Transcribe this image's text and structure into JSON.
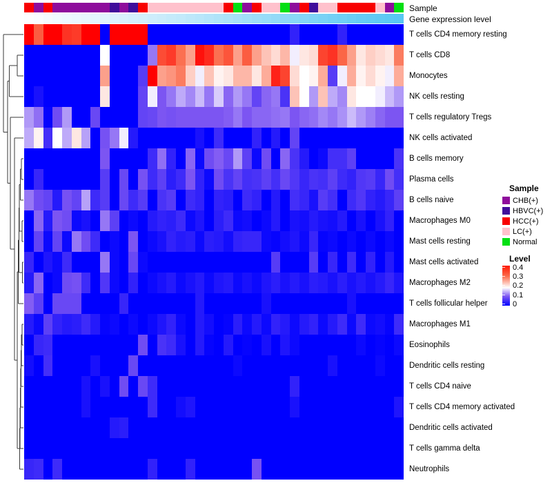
{
  "annotations": {
    "sample_label": "Sample",
    "expression_label": "Gene expression level",
    "sample_groups": [
      "HCC",
      "CHB",
      "HCC",
      "CHB",
      "CHB",
      "CHB",
      "CHB",
      "CHB",
      "CHB",
      "HBVC",
      "CHB",
      "HBVC",
      "HCC",
      "LC",
      "LC",
      "LC",
      "LC",
      "LC",
      "LC",
      "LC",
      "LC",
      "HCC",
      "Normal",
      "CHB",
      "HCC",
      "LC",
      "LC",
      "Normal",
      "CHB",
      "HCC",
      "HBVC",
      "LC",
      "LC",
      "HCC",
      "HCC",
      "HCC",
      "HCC",
      "LC",
      "CHB",
      "Normal"
    ],
    "expression_values": [
      0,
      0.02,
      0.05,
      0.07,
      0.09,
      0.11,
      0.13,
      0.15,
      0.17,
      0.2,
      0.22,
      0.24,
      0.26,
      0.29,
      0.31,
      0.34,
      0.36,
      0.39,
      0.41,
      0.44,
      0.47,
      0.5,
      0.53,
      0.56,
      0.59,
      0.62,
      0.65,
      0.68,
      0.71,
      0.74,
      0.77,
      0.8,
      0.83,
      0.86,
      0.89,
      0.92,
      0.94,
      0.96,
      0.98,
      1
    ]
  },
  "sample_colors": {
    "CHB": "#8e0c9c",
    "HBVC": "#400d9b",
    "HCC": "#f80000",
    "LC": "#ffc1cc",
    "Normal": "#02df13"
  },
  "expression_scale": {
    "low": "#fdfdff",
    "high": "#58c7f3"
  },
  "legend": {
    "sample_title": "Sample",
    "sample_items": [
      {
        "label": "CHB(+)",
        "color": "#8e0c9c"
      },
      {
        "label": "HBVC(+)",
        "color": "#400d9b"
      },
      {
        "label": "HCC(+)",
        "color": "#f80000"
      },
      {
        "label": "LC(+)",
        "color": "#ffc1cc"
      },
      {
        "label": "Normal",
        "color": "#02df13"
      }
    ],
    "level_title": "Level",
    "level_ticks": [
      "0.4",
      "0.3",
      "0.2",
      "0.1",
      "0"
    ]
  },
  "chart_data": {
    "type": "heatmap",
    "n_cols": 40,
    "rows": [
      "T cells CD4 memory resting",
      "T cells CD8",
      "Monocytes",
      "NK cells resting",
      "T cells regulatory  Tregs",
      "NK cells activated",
      "B cells memory",
      "Plasma cells",
      "B cells naive",
      "Macrophages M0",
      "Mast cells resting",
      "Mast cells activated",
      "Macrophages M2",
      "T cells follicular helper",
      "Macrophages M1",
      "Eosinophils",
      "Dendritic cells resting",
      "T cells CD4 naive",
      "T cells CD4 memory activated",
      "Dendritic cells activated",
      "T cells gamma delta",
      "Neutrophils"
    ],
    "level_scale": {
      "stops": [
        {
          "v": 0,
          "color": "#0000ff"
        },
        {
          "v": 0.1,
          "color": "#7c55f2"
        },
        {
          "v": 0.2,
          "color": "#ffffff"
        },
        {
          "v": 0.325,
          "color": "#fb6a4a"
        },
        {
          "v": 0.45,
          "color": "#ff0000"
        }
      ]
    },
    "values": [
      [
        0.45,
        0.34,
        0.45,
        0.45,
        0.39,
        0.38,
        0.45,
        0.45,
        0,
        0.45,
        0.45,
        0.45,
        0.45,
        0,
        0,
        0,
        0,
        0,
        0,
        0,
        0,
        0,
        0,
        0,
        0,
        0,
        0,
        0,
        0.04,
        0,
        0,
        0,
        0,
        0.04,
        0,
        0,
        0,
        0,
        0,
        0
      ],
      [
        0,
        0,
        0,
        0,
        0,
        0,
        0,
        0,
        0.2,
        0,
        0,
        0,
        0,
        0.12,
        0.36,
        0.38,
        0.32,
        0.28,
        0.43,
        0.4,
        0.32,
        0.35,
        0.28,
        0.34,
        0.28,
        0.25,
        0.23,
        0.26,
        0.19,
        0.22,
        0.23,
        0.37,
        0.39,
        0.33,
        0.28,
        0.22,
        0.24,
        0.23,
        0.22,
        0.31
      ],
      [
        0,
        0,
        0,
        0,
        0,
        0,
        0,
        0,
        0.28,
        0,
        0,
        0,
        0.07,
        0.45,
        0.28,
        0.29,
        0.31,
        0.24,
        0.19,
        0.25,
        0.21,
        0.22,
        0.26,
        0.26,
        0.22,
        0.27,
        0.41,
        0.37,
        0.23,
        0.2,
        0.21,
        0.27,
        0.07,
        0.19,
        0.27,
        0.21,
        0.23,
        0.21,
        0.19,
        0.27
      ],
      [
        0,
        0.02,
        0,
        0,
        0,
        0,
        0,
        0,
        0.22,
        0,
        0,
        0,
        0.08,
        0.19,
        0.1,
        0.12,
        0.15,
        0.13,
        0.16,
        0.12,
        0.17,
        0.11,
        0.14,
        0.12,
        0.08,
        0.11,
        0.12,
        0.06,
        0.25,
        0.2,
        0.14,
        0.25,
        0.15,
        0.13,
        0.22,
        0.2,
        0.2,
        0.19,
        0.16,
        0.14
      ],
      [
        0.14,
        0.115,
        0.005,
        0.09,
        0.14,
        0,
        0,
        0.085,
        0,
        0,
        0,
        0,
        0.08,
        0.085,
        0.1,
        0.095,
        0.1,
        0.1,
        0.1,
        0.1,
        0.1,
        0.105,
        0.12,
        0.1,
        0.11,
        0.11,
        0.115,
        0.12,
        0.1,
        0.11,
        0.115,
        0.13,
        0.12,
        0.135,
        0.16,
        0.14,
        0.125,
        0.11,
        0.1,
        0.1
      ],
      [
        0.15,
        0.21,
        0.055,
        0.2,
        0.15,
        0.22,
        0.145,
        0,
        0.095,
        0.12,
        0.19,
        0.03,
        0,
        0,
        0,
        0,
        0,
        0,
        0.02,
        0,
        0.05,
        0,
        0,
        0,
        0.04,
        0,
        0.03,
        0,
        0.08,
        0,
        0,
        0,
        0,
        0,
        0,
        0,
        0,
        0,
        0,
        0
      ],
      [
        0,
        0,
        0,
        0,
        0,
        0,
        0,
        0,
        0.1,
        0,
        0,
        0,
        0,
        0.05,
        0.115,
        0.04,
        0,
        0.11,
        0.01,
        0.09,
        0.105,
        0.085,
        0.14,
        0.075,
        0.01,
        0.09,
        0,
        0.11,
        0.06,
        0.03,
        0,
        0.01,
        0.055,
        0.055,
        0.075,
        0,
        0,
        0,
        0,
        0.06
      ],
      [
        0,
        0.045,
        0,
        0,
        0,
        0,
        0,
        0,
        0.07,
        0,
        0.085,
        0,
        0.095,
        0.05,
        0.075,
        0.035,
        0.05,
        0.1,
        0.04,
        0.01,
        0.09,
        0.06,
        0.08,
        0.055,
        0.06,
        0.075,
        0.055,
        0.085,
        0.065,
        0.045,
        0.06,
        0.055,
        0.075,
        0.05,
        0.04,
        0.065,
        0.07,
        0.045,
        0.09,
        0.055
      ],
      [
        0.12,
        0.09,
        0.08,
        0.03,
        0.095,
        0.08,
        0.145,
        0.05,
        0.07,
        0,
        0.085,
        0.05,
        0.07,
        0,
        0.06,
        0.07,
        0,
        0.05,
        0.04,
        0,
        0.04,
        0.035,
        0,
        0.05,
        0.04,
        0,
        0.03,
        0,
        0.055,
        0.045,
        0.02,
        0.07,
        0.055,
        0,
        0.05,
        0.065,
        0.04,
        0.03,
        0.045,
        0.075
      ],
      [
        0,
        0.11,
        0.03,
        0.1,
        0.09,
        0.01,
        0.02,
        0,
        0.12,
        0.075,
        0,
        0.01,
        0,
        0.03,
        0.04,
        0.035,
        0.05,
        0.01,
        0.025,
        0,
        0.035,
        0.05,
        0.01,
        0.015,
        0,
        0.01,
        0.03,
        0,
        0.02,
        0.015,
        0.03,
        0.02,
        0.015,
        0.03,
        0,
        0.02,
        0,
        0.02,
        0.04,
        0
      ],
      [
        0,
        0.08,
        0.01,
        0.08,
        0.01,
        0.12,
        0.09,
        0.05,
        0,
        0.01,
        0,
        0.1,
        0,
        0.01,
        0.02,
        0.04,
        0.03,
        0.035,
        0.01,
        0.035,
        0.03,
        0.015,
        0.04,
        0.045,
        0.045,
        0.01,
        0.005,
        0.015,
        0.025,
        0.01,
        0.045,
        0.005,
        0.01,
        0,
        0.01,
        0,
        0.01,
        0,
        0.01,
        0
      ],
      [
        0.045,
        0,
        0.025,
        0.01,
        0.05,
        0,
        0,
        0,
        0.12,
        0.01,
        0,
        0.085,
        0.01,
        0,
        0,
        0,
        0,
        0,
        0,
        0,
        0,
        0,
        0,
        0,
        0,
        0,
        0.07,
        0,
        0,
        0,
        0.07,
        0,
        0.045,
        0,
        0.05,
        0,
        0.04,
        0,
        0.03,
        0
      ],
      [
        0.03,
        0.11,
        0,
        0.01,
        0.09,
        0.095,
        0.05,
        0,
        0.065,
        0.01,
        0,
        0.04,
        0,
        0.01,
        0.02,
        0.03,
        0.01,
        0.02,
        0.03,
        0.01,
        0.025,
        0.03,
        0.01,
        0.02,
        0.01,
        0.025,
        0.035,
        0.02,
        0.03,
        0.02,
        0.035,
        0.03,
        0.02,
        0.035,
        0.02,
        0.03,
        0.02,
        0.03,
        0.045,
        0.025
      ],
      [
        0.105,
        0.075,
        0,
        0.085,
        0.085,
        0.085,
        0,
        0,
        0,
        0,
        0.045,
        0,
        0,
        0,
        0,
        0,
        0,
        0,
        0.03,
        0,
        0,
        0,
        0,
        0,
        0,
        0.02,
        0,
        0,
        0,
        0,
        0,
        0,
        0,
        0,
        0.02,
        0,
        0,
        0,
        0,
        0
      ],
      [
        0.03,
        0.01,
        0.075,
        0.04,
        0.03,
        0.035,
        0.05,
        0.03,
        0.005,
        0.01,
        0,
        0.01,
        0,
        0.01,
        0.025,
        0.04,
        0.01,
        0,
        0.03,
        0.015,
        0,
        0.005,
        0.035,
        0.01,
        0.03,
        0.01,
        0.04,
        0.03,
        0.01,
        0.03,
        0.04,
        0.01,
        0.03,
        0.05,
        0.01,
        0.05,
        0.01,
        0.015,
        0.005,
        0.05
      ],
      [
        0,
        0.045,
        0.05,
        0,
        0,
        0,
        0,
        0,
        0,
        0,
        0,
        0,
        0.09,
        0,
        0.06,
        0.05,
        0.02,
        0,
        0.03,
        0.005,
        0,
        0.03,
        0,
        0.005,
        0,
        0.02,
        0,
        0.025,
        0.01,
        0,
        0,
        0,
        0,
        0,
        0,
        0.01,
        0,
        0.005,
        0,
        0.01
      ],
      [
        0.015,
        0,
        0.055,
        0,
        0,
        0,
        0,
        0.02,
        0,
        0,
        0,
        0.085,
        0,
        0,
        0,
        0,
        0,
        0,
        0,
        0,
        0,
        0,
        0.01,
        0,
        0,
        0,
        0,
        0,
        0,
        0,
        0,
        0,
        0.02,
        0,
        0,
        0,
        0,
        0.01,
        0,
        0
      ],
      [
        0,
        0,
        0,
        0,
        0,
        0,
        0.02,
        0,
        0.02,
        0,
        0.09,
        0,
        0.085,
        0.05,
        0,
        0,
        0,
        0,
        0,
        0,
        0,
        0,
        0,
        0,
        0,
        0,
        0,
        0,
        0.04,
        0,
        0,
        0,
        0,
        0,
        0,
        0,
        0,
        0,
        0,
        0
      ],
      [
        0,
        0,
        0,
        0,
        0,
        0,
        0.02,
        0,
        0,
        0,
        0,
        0,
        0,
        0.05,
        0,
        0,
        0.015,
        0.025,
        0,
        0,
        0,
        0,
        0,
        0,
        0,
        0,
        0,
        0,
        0.02,
        0,
        0,
        0,
        0,
        0,
        0,
        0,
        0,
        0,
        0,
        0.025
      ],
      [
        0,
        0,
        0,
        0,
        0,
        0,
        0,
        0,
        0,
        0.03,
        0.035,
        0,
        0,
        0,
        0,
        0,
        0,
        0,
        0,
        0,
        0,
        0,
        0,
        0,
        0,
        0,
        0,
        0,
        0,
        0,
        0,
        0,
        0,
        0,
        0,
        0,
        0,
        0,
        0,
        0
      ],
      [
        0,
        0,
        0,
        0,
        0,
        0,
        0,
        0,
        0,
        0,
        0,
        0,
        0,
        0,
        0,
        0,
        0,
        0,
        0,
        0,
        0,
        0,
        0,
        0,
        0,
        0,
        0,
        0,
        0,
        0,
        0,
        0,
        0,
        0,
        0,
        0,
        0,
        0,
        0,
        0
      ],
      [
        0.045,
        0.05,
        0,
        0.05,
        0,
        0,
        0,
        0,
        0,
        0,
        0,
        0,
        0,
        0.04,
        0,
        0,
        0,
        0.04,
        0,
        0,
        0,
        0,
        0,
        0,
        0.095,
        0,
        0,
        0,
        0,
        0,
        0,
        0,
        0,
        0,
        0,
        0,
        0,
        0,
        0,
        0
      ]
    ]
  }
}
